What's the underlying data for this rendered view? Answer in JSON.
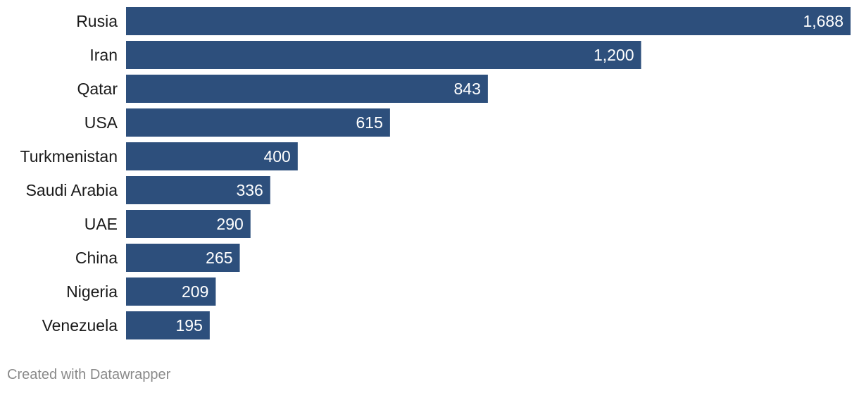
{
  "chart_data": {
    "type": "bar",
    "orientation": "horizontal",
    "categories": [
      "Rusia",
      "Iran",
      "Qatar",
      "USA",
      "Turkmenistan",
      "Saudi Arabia",
      "UAE",
      "China",
      "Nigeria",
      "Venezuela"
    ],
    "values": [
      1688,
      1200,
      843,
      615,
      400,
      336,
      290,
      265,
      209,
      195
    ],
    "value_labels": [
      "1,688",
      "1,200",
      "843",
      "615",
      "400",
      "336",
      "290",
      "265",
      "209",
      "195"
    ],
    "xlim": [
      0,
      1688
    ],
    "bar_color": "#2d4f7c",
    "grid": false,
    "legend": "none"
  },
  "footer": {
    "credit": "Created with Datawrapper"
  }
}
